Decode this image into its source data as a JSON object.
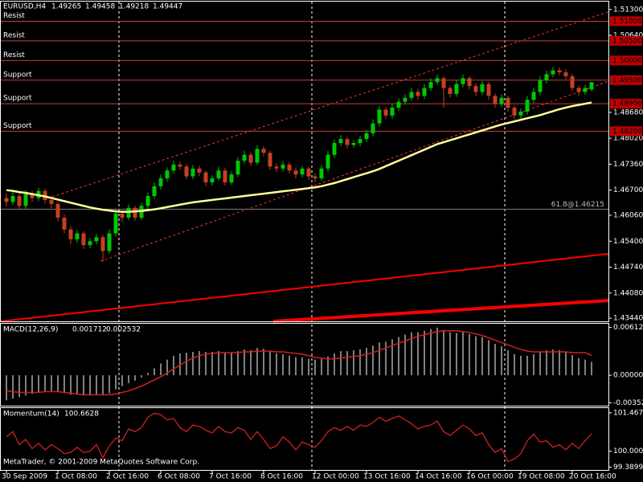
{
  "chart_data": [
    {
      "type": "candlestick",
      "symbol": "EURUSD,H4",
      "categories": [
        "30 Sep 2009",
        null,
        null,
        null,
        null,
        null,
        null,
        null,
        "1 Oct 08:00",
        null,
        null,
        null,
        null,
        null,
        null,
        null,
        "2 Oct 16:00",
        null,
        null,
        null,
        null,
        null,
        null,
        null,
        "6 Oct 08:00",
        null,
        null,
        null,
        null,
        null,
        null,
        null,
        "7 Oct 16:00",
        null,
        null,
        null,
        null,
        null,
        null,
        null,
        "8 Oct 16:00",
        null,
        null,
        null,
        null,
        null,
        null,
        null,
        "12 Oct 00:00",
        null,
        null,
        null,
        null,
        null,
        null,
        null,
        "13 Oct 16:00",
        null,
        null,
        null,
        null,
        null,
        null,
        null,
        "14 Oct 16:00",
        null,
        null,
        null,
        null,
        null,
        null,
        null,
        "16 Oct 00:00",
        null,
        null,
        null,
        null,
        null,
        null,
        null,
        "19 Oct 08:00",
        null,
        null,
        null,
        null,
        null,
        null,
        null,
        "20 Oct 16:00",
        null,
        null,
        null
      ],
      "candles": [
        [
          1.465,
          1.4662,
          1.4628,
          1.464
        ],
        [
          1.464,
          1.4665,
          1.4632,
          1.4655
        ],
        [
          1.4655,
          1.4664,
          1.462,
          1.463
        ],
        [
          1.463,
          1.467,
          1.4622,
          1.466
        ],
        [
          1.466,
          1.4668,
          1.464,
          1.465
        ],
        [
          1.465,
          1.4676,
          1.4642,
          1.4668
        ],
        [
          1.4668,
          1.4674,
          1.4636,
          1.4645
        ],
        [
          1.4645,
          1.4652,
          1.4625,
          1.4635
        ],
        [
          1.4635,
          1.464,
          1.459,
          1.46
        ],
        [
          1.46,
          1.4608,
          1.456,
          1.457
        ],
        [
          1.457,
          1.4578,
          1.4532,
          1.4545
        ],
        [
          1.4545,
          1.4568,
          1.4536,
          1.456
        ],
        [
          1.456,
          1.4566,
          1.452,
          1.453
        ],
        [
          1.453,
          1.4548,
          1.4522,
          1.454
        ],
        [
          1.454,
          1.4558,
          1.4532,
          1.455
        ],
        [
          1.455,
          1.4556,
          1.4488,
          1.4515
        ],
        [
          1.4515,
          1.457,
          1.4508,
          1.456
        ],
        [
          1.456,
          1.462,
          1.4552,
          1.461
        ],
        [
          1.461,
          1.4618,
          1.459,
          1.46
        ],
        [
          1.46,
          1.4634,
          1.4594,
          1.4625
        ],
        [
          1.4625,
          1.463,
          1.4592,
          1.46
        ],
        [
          1.46,
          1.4638,
          1.4594,
          1.463
        ],
        [
          1.463,
          1.4664,
          1.4622,
          1.4655
        ],
        [
          1.4655,
          1.469,
          1.4648,
          1.468
        ],
        [
          1.468,
          1.471,
          1.4672,
          1.47
        ],
        [
          1.47,
          1.4728,
          1.4692,
          1.472
        ],
        [
          1.472,
          1.4745,
          1.4712,
          1.4735
        ],
        [
          1.4735,
          1.4742,
          1.4722,
          1.473
        ],
        [
          1.473,
          1.4736,
          1.4698,
          1.4705
        ],
        [
          1.4705,
          1.4734,
          1.4698,
          1.4725
        ],
        [
          1.4725,
          1.4732,
          1.4706,
          1.4715
        ],
        [
          1.4715,
          1.472,
          1.468,
          1.469
        ],
        [
          1.469,
          1.4708,
          1.4682,
          1.47
        ],
        [
          1.47,
          1.473,
          1.4694,
          1.472
        ],
        [
          1.472,
          1.4726,
          1.4682,
          1.469
        ],
        [
          1.469,
          1.4718,
          1.4684,
          1.471
        ],
        [
          1.471,
          1.4754,
          1.4704,
          1.4745
        ],
        [
          1.4745,
          1.477,
          1.4738,
          1.476
        ],
        [
          1.476,
          1.4766,
          1.4732,
          1.474
        ],
        [
          1.474,
          1.4785,
          1.4734,
          1.4775
        ],
        [
          1.4775,
          1.4782,
          1.4756,
          1.4765
        ],
        [
          1.4765,
          1.477,
          1.4722,
          1.473
        ],
        [
          1.473,
          1.4738,
          1.4716,
          1.4725
        ],
        [
          1.4725,
          1.4744,
          1.4718,
          1.4735
        ],
        [
          1.4735,
          1.4742,
          1.4712,
          1.472
        ],
        [
          1.472,
          1.4728,
          1.47,
          1.471
        ],
        [
          1.471,
          1.4732,
          1.4702,
          1.4725
        ],
        [
          1.4725,
          1.473,
          1.4696,
          1.4705
        ],
        [
          1.4705,
          1.4712,
          1.469,
          1.47
        ],
        [
          1.47,
          1.4734,
          1.4694,
          1.4725
        ],
        [
          1.4725,
          1.477,
          1.4718,
          1.476
        ],
        [
          1.476,
          1.4798,
          1.4752,
          1.479
        ],
        [
          1.479,
          1.481,
          1.4782,
          1.48
        ],
        [
          1.48,
          1.4806,
          1.4776,
          1.4785
        ],
        [
          1.4785,
          1.4798,
          1.4778,
          1.479
        ],
        [
          1.479,
          1.4808,
          1.4782,
          1.48
        ],
        [
          1.48,
          1.4824,
          1.4792,
          1.4815
        ],
        [
          1.4815,
          1.485,
          1.4808,
          1.484
        ],
        [
          1.484,
          1.4884,
          1.4832,
          1.4875
        ],
        [
          1.4875,
          1.4882,
          1.4852,
          1.486
        ],
        [
          1.486,
          1.489,
          1.4852,
          1.488
        ],
        [
          1.488,
          1.4904,
          1.4872,
          1.4895
        ],
        [
          1.4895,
          1.4914,
          1.4888,
          1.4905
        ],
        [
          1.4905,
          1.493,
          1.4898,
          1.492
        ],
        [
          1.492,
          1.4928,
          1.49,
          1.491
        ],
        [
          1.491,
          1.494,
          1.4902,
          1.493
        ],
        [
          1.493,
          1.4955,
          1.4922,
          1.4945
        ],
        [
          1.4945,
          1.4964,
          1.4938,
          1.4955
        ],
        [
          1.4955,
          1.496,
          1.488,
          1.493
        ],
        [
          1.493,
          1.4936,
          1.4906,
          1.4915
        ],
        [
          1.4915,
          1.495,
          1.4908,
          1.494
        ],
        [
          1.494,
          1.4964,
          1.4932,
          1.4955
        ],
        [
          1.4955,
          1.496,
          1.4926,
          1.4935
        ],
        [
          1.4935,
          1.4942,
          1.491,
          1.492
        ],
        [
          1.492,
          1.4948,
          1.4912,
          1.494
        ],
        [
          1.494,
          1.4946,
          1.49,
          1.491
        ],
        [
          1.491,
          1.4916,
          1.488,
          1.489
        ],
        [
          1.489,
          1.4914,
          1.4882,
          1.4905
        ],
        [
          1.4905,
          1.491,
          1.487,
          1.488
        ],
        [
          1.488,
          1.4886,
          1.485,
          1.486
        ],
        [
          1.486,
          1.4878,
          1.4852,
          1.487
        ],
        [
          1.487,
          1.491,
          1.4862,
          1.49
        ],
        [
          1.49,
          1.493,
          1.4892,
          1.492
        ],
        [
          1.492,
          1.496,
          1.4912,
          1.495
        ],
        [
          1.495,
          1.4974,
          1.4942,
          1.4965
        ],
        [
          1.4965,
          1.4984,
          1.4958,
          1.4975
        ],
        [
          1.4975,
          1.4982,
          1.4962,
          1.497
        ],
        [
          1.497,
          1.4978,
          1.4952,
          1.496
        ],
        [
          1.496,
          1.4966,
          1.4922,
          1.493
        ],
        [
          1.493,
          1.4936,
          1.491,
          1.492
        ],
        [
          1.492,
          1.4938,
          1.4912,
          1.493
        ],
        [
          1.49265,
          1.49458,
          1.49218,
          1.49447
        ]
      ],
      "up_color": "#00c800",
      "down_color": "#c84020",
      "ma": {
        "color": "#ffff99",
        "values": [
          1.467,
          1.4668,
          1.4665,
          1.4663,
          1.466,
          1.4657,
          1.4654,
          1.465,
          1.4646,
          1.4642,
          1.4638,
          1.4634,
          1.463,
          1.4626,
          1.4623,
          1.462,
          1.4618,
          1.4616,
          1.4615,
          1.4615,
          1.4616,
          1.4617,
          1.4619,
          1.4621,
          1.4624,
          1.4627,
          1.463,
          1.4633,
          1.4636,
          1.4639,
          1.4641,
          1.4643,
          1.4645,
          1.4647,
          1.4649,
          1.4651,
          1.4653,
          1.4655,
          1.4657,
          1.4659,
          1.4661,
          1.4663,
          1.4665,
          1.4667,
          1.4669,
          1.4671,
          1.4673,
          1.4675,
          1.4677,
          1.468,
          1.4684,
          1.4688,
          1.4693,
          1.4698,
          1.4703,
          1.4708,
          1.4713,
          1.4718,
          1.4724,
          1.4731,
          1.4738,
          1.4745,
          1.4752,
          1.4759,
          1.4766,
          1.4773,
          1.478,
          1.4787,
          1.4792,
          1.4797,
          1.4802,
          1.4807,
          1.4812,
          1.4817,
          1.4822,
          1.4827,
          1.4832,
          1.4837,
          1.4841,
          1.4845,
          1.4849,
          1.4853,
          1.4857,
          1.4861,
          1.4866,
          1.4871,
          1.4876,
          1.488,
          1.4884,
          1.4887,
          1.489,
          1.4893
        ]
      },
      "levels": [
        {
          "label": "Resist",
          "price": {
            "value": 1.51,
            "label": "1.51000"
          }
        },
        {
          "label": "Resist",
          "price": {
            "value": 1.505,
            "label": "1.50500"
          }
        },
        {
          "label": "Resist",
          "price": {
            "value": 1.5,
            "label": "1.50000"
          }
        },
        {
          "label": "Support",
          "price": {
            "value": 1.495,
            "label": "1.49500"
          }
        },
        {
          "label": "Support",
          "price": {
            "value": 1.489,
            "label": "1.48900"
          }
        },
        {
          "label": "Support",
          "price": {
            "value": 1.482,
            "label": "1.48200"
          }
        }
      ],
      "level_color": "#c04040",
      "fib": {
        "label": "61.8@1.46215",
        "value": 1.46215,
        "color": "#808080"
      },
      "trendlines": [
        {
          "values": [
            1.4653,
            1.5124
          ],
          "color": "#ff3030",
          "dashed": true,
          "width": 1
        },
        {
          "values": [
            1.4489,
            1.4947
          ],
          "color": "#ff3030",
          "dashed": true,
          "width": 1
        },
        {
          "values": [
            1.4336,
            1.4508
          ],
          "color": "#ff0000",
          "dashed": false,
          "width": 2
        },
        {
          "values": [
            1.4336,
            1.4389
          ],
          "color": "#ff0000",
          "dashed": false,
          "width": 4
        }
      ],
      "ylim": [
        1.4336,
        1.515
      ],
      "yticks": [
        {
          "value": 1.513,
          "label": "1.51300"
        },
        {
          "value": 1.5064,
          "label": "1.50640"
        },
        {
          "value": 1.4868,
          "label": "1.48680"
        },
        {
          "value": 1.4802,
          "label": "1.48020"
        },
        {
          "value": 1.4736,
          "label": "1.47360"
        },
        {
          "value": 1.467,
          "label": "1.46700"
        },
        {
          "value": 1.4606,
          "label": "1.46060"
        },
        {
          "value": 1.454,
          "label": "1.45400"
        },
        {
          "value": 1.4474,
          "label": "1.44740"
        },
        {
          "value": 1.4408,
          "label": "1.44080"
        },
        {
          "value": 1.4344,
          "label": "1.43440"
        }
      ]
    },
    {
      "type": "macd",
      "title": "MACD(12,26,9)",
      "histogram": {
        "color": "#ffffff",
        "values": [
          -0.0032,
          -0.003,
          -0.0028,
          -0.0026,
          -0.0024,
          -0.0022,
          -0.0021,
          -0.002,
          -0.0021,
          -0.0023,
          -0.0025,
          -0.0025,
          -0.0026,
          -0.0026,
          -0.0025,
          -0.0026,
          -0.0023,
          -0.0018,
          -0.0014,
          -0.001,
          -0.0007,
          -0.0003,
          0.0003,
          0.0009,
          0.0015,
          0.002,
          0.0025,
          0.0028,
          0.0029,
          0.003,
          0.0031,
          0.003,
          0.003,
          0.0031,
          0.0029,
          0.0029,
          0.0031,
          0.0033,
          0.0032,
          0.0035,
          0.0034,
          0.0031,
          0.0028,
          0.0027,
          0.0025,
          0.0023,
          0.0023,
          0.0021,
          0.002,
          0.0021,
          0.0024,
          0.0028,
          0.0031,
          0.0031,
          0.0032,
          0.0033,
          0.0035,
          0.0038,
          0.0042,
          0.0043,
          0.0046,
          0.0049,
          0.0052,
          0.0055,
          0.0055,
          0.0057,
          0.0059,
          0.0061,
          0.0058,
          0.0055,
          0.0054,
          0.0055,
          0.0053,
          0.005,
          0.0049,
          0.0045,
          0.004,
          0.0037,
          0.0032,
          0.0027,
          0.0025,
          0.0025,
          0.0027,
          0.003,
          0.0032,
          0.0033,
          0.0032,
          0.003,
          0.0026,
          0.0022,
          0.002,
          0.001712
        ]
      },
      "signal": {
        "color": "#d02020",
        "values": [
          -0.002,
          -0.0021,
          -0.0022,
          -0.0022,
          -0.0022,
          -0.0022,
          -0.0021,
          -0.0021,
          -0.0021,
          -0.0022,
          -0.0023,
          -0.0024,
          -0.0025,
          -0.0025,
          -0.0025,
          -0.0025,
          -0.0025,
          -0.0024,
          -0.0022,
          -0.002,
          -0.0017,
          -0.0014,
          -0.001,
          -0.0006,
          -0.0002,
          0.0003,
          0.0008,
          0.0013,
          0.0018,
          0.0022,
          0.0025,
          0.0027,
          0.0028,
          0.0029,
          0.0029,
          0.0029,
          0.0029,
          0.003,
          0.003,
          0.0031,
          0.0031,
          0.0031,
          0.003,
          0.003,
          0.0029,
          0.0028,
          0.0027,
          0.0025,
          0.0023,
          0.0022,
          0.0021,
          0.0021,
          0.0022,
          0.0023,
          0.0024,
          0.0025,
          0.0027,
          0.0029,
          0.0032,
          0.0035,
          0.0038,
          0.0041,
          0.0044,
          0.0047,
          0.005,
          0.0052,
          0.0054,
          0.0056,
          0.0057,
          0.0057,
          0.0057,
          0.0056,
          0.0055,
          0.0053,
          0.0051,
          0.0048,
          0.0045,
          0.0042,
          0.0039,
          0.0036,
          0.0033,
          0.0031,
          0.003,
          0.003,
          0.003,
          0.003,
          0.003,
          0.003,
          0.0029,
          0.0029,
          0.0029,
          0.002532
        ]
      },
      "ylim": [
        -0.0039,
        0.0066
      ],
      "yticks": [
        0.006127,
        {
          "value": 0,
          "label": "0.000000"
        },
        -0.00352
      ]
    },
    {
      "type": "line",
      "title": "Momentum(14)",
      "color": "#d02020",
      "values": [
        100.55,
        100.75,
        100.25,
        100.45,
        100.1,
        100.3,
        100.05,
        100.25,
        100.1,
        99.9,
        99.95,
        100.15,
        99.95,
        100.0,
        100.25,
        99.75,
        100.2,
        100.5,
        100.4,
        100.85,
        100.75,
        100.9,
        101.3,
        101.45,
        101.4,
        101.2,
        101.25,
        100.9,
        100.75,
        101.0,
        100.95,
        100.8,
        100.7,
        100.95,
        100.75,
        100.7,
        100.9,
        100.8,
        100.45,
        100.75,
        100.45,
        100.1,
        100.2,
        100.55,
        100.35,
        100.05,
        100.35,
        100.25,
        100.15,
        100.4,
        100.75,
        100.9,
        100.8,
        100.95,
        100.8,
        101.0,
        100.95,
        101.1,
        101.3,
        101.15,
        101.25,
        101.35,
        101.2,
        101.05,
        100.85,
        100.95,
        101.0,
        101.15,
        100.75,
        100.6,
        100.8,
        101.0,
        100.85,
        100.6,
        100.7,
        100.25,
        99.95,
        100.1,
        99.6,
        99.7,
        99.9,
        100.4,
        100.65,
        100.35,
        100.4,
        100.15,
        100.25,
        100.05,
        100.3,
        100.1,
        100.4,
        100.6628
      ],
      "ylim": [
        99.28,
        101.65
      ],
      "yticks": [
        101.467,
        {
          "value": 100,
          "label": "100.0000"
        },
        99.3899
      ],
      "annotation": "MetaTrader, © 2001-2009 MetaQuotes Software Corp."
    }
  ]
}
